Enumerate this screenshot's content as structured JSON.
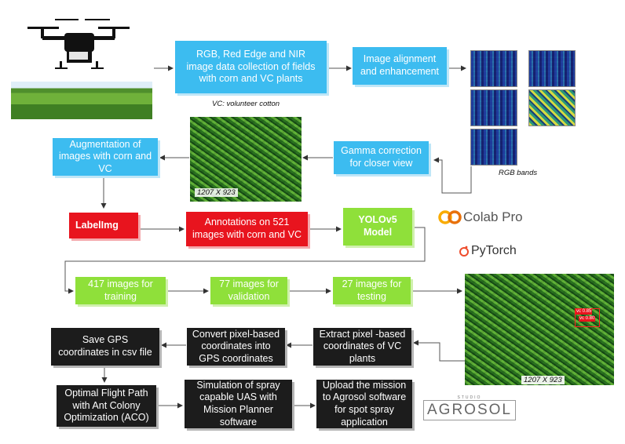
{
  "steps": {
    "data_collection": "RGB, Red Edge and NIR image data collection  of fields with corn and VC plants",
    "vc_note": "VC: volunteer cotton",
    "alignment": "Image alignment and enhancement",
    "rgb_bands": "RGB bands",
    "gamma": "Gamma correction for closer view",
    "resolution_1": "1207 X 923",
    "augmentation": "Augmentation of images with corn and VC",
    "labelimg": "LabelImg",
    "annotations": "Annotations on  521 images with corn and VC",
    "yolo": "YOLOv5 Model",
    "training": "417  images for training",
    "validation": "77 images for validation",
    "testing": "27 images for testing",
    "resolution_2": "1207 X 923",
    "extract": "Extract  pixel -based coordinates of VC plants",
    "convert": "Convert pixel-based coordinates into GPS coordinates",
    "save_gps": "Save GPS coordinates in csv file",
    "flight_path": "Optimal Flight Path with Ant Colony Optimization (ACO)",
    "simulation": "Simulation of spray capable UAS with Mission Planner software",
    "upload": "Upload the mission to  Agrosol software for spot spray  application"
  },
  "detections": [
    "vc 0.85",
    "vc 0.80"
  ],
  "logos": {
    "colab": "Colab Pro",
    "pytorch": "PyTorch",
    "agrosol_small": "STUDIO",
    "agrosol": "AGROSOL"
  },
  "colors": {
    "blue_box": "#3cbcf0",
    "red_box": "#e8141e",
    "green_box": "#8fe03a",
    "black_box": "#1c1c1c",
    "colab_orange": "#f9ab00",
    "pytorch_orange": "#ee4c2c"
  }
}
